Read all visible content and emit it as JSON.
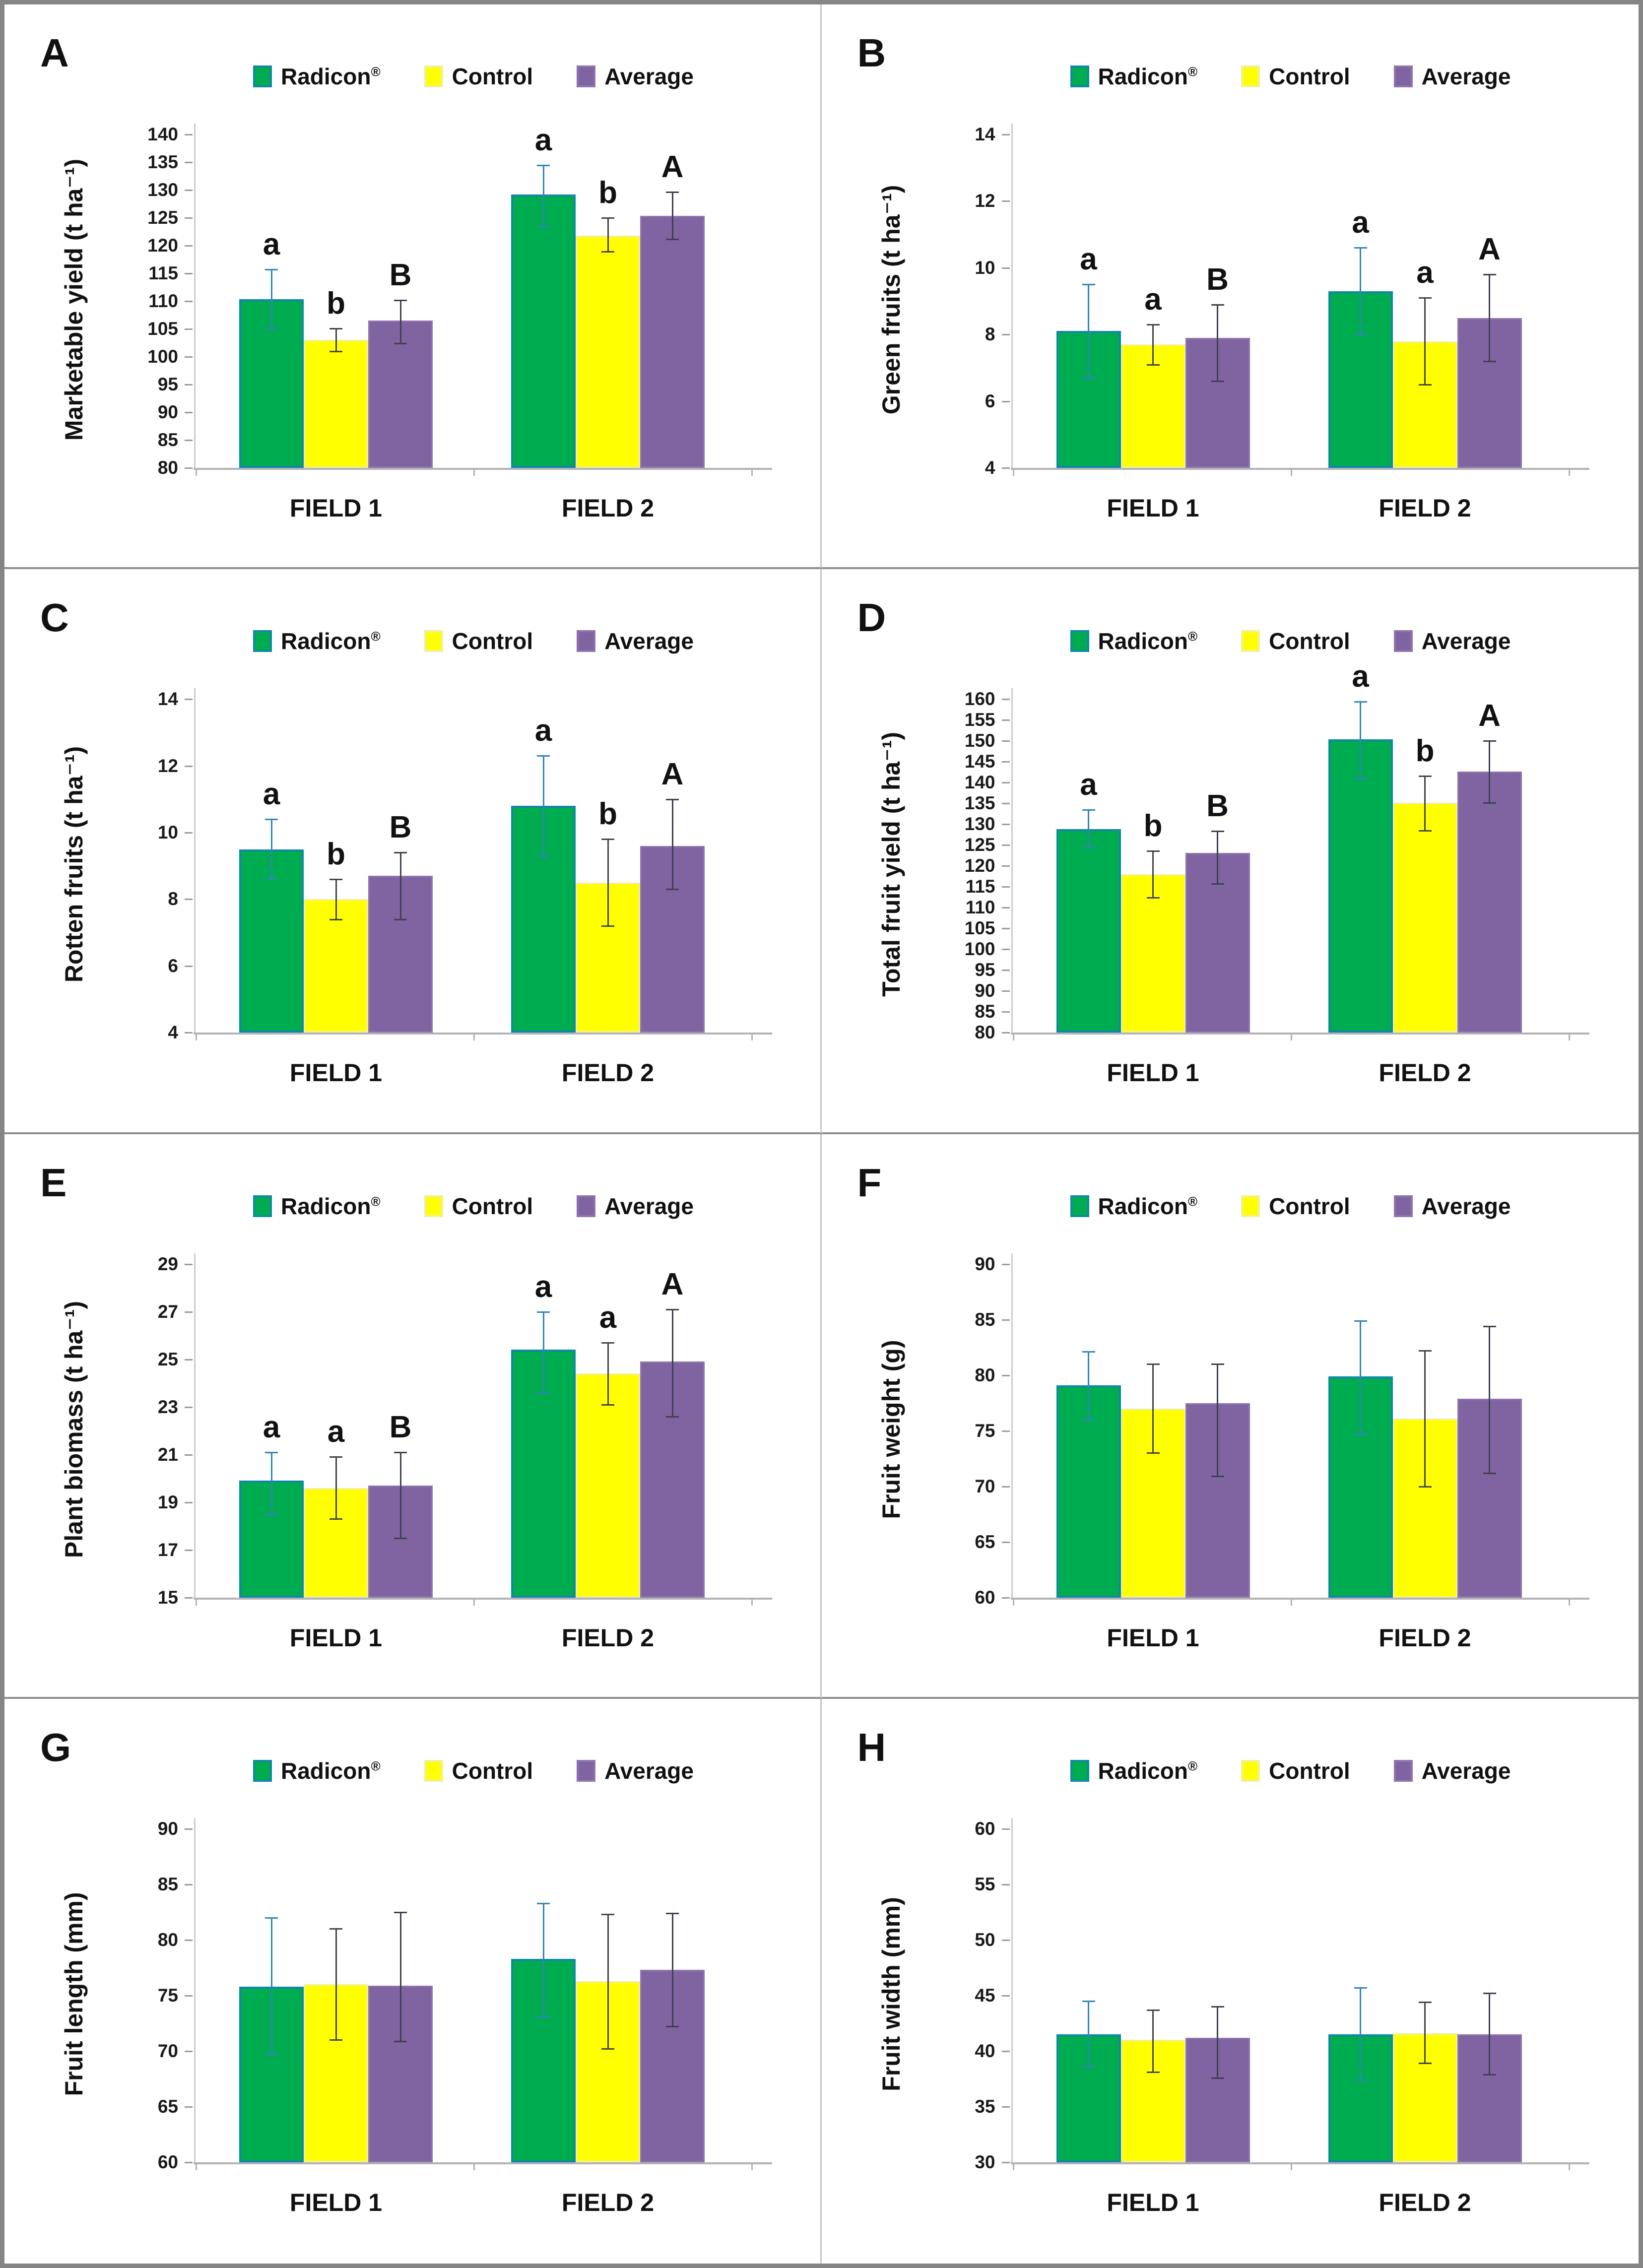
{
  "figure": {
    "panels": [
      "A",
      "B",
      "C",
      "D",
      "E",
      "F",
      "G",
      "H"
    ],
    "x_categories": [
      "FIELD 1",
      "FIELD 2"
    ]
  },
  "legend": {
    "items": [
      {
        "label": "Radicon",
        "reg": "®",
        "color": "#00AC50",
        "border": "#0f87a6"
      },
      {
        "label": "Control",
        "reg": "",
        "color": "#FFFF00",
        "border": "#f0f09a"
      },
      {
        "label": "Average",
        "reg": "",
        "color": "#8064A2",
        "border": "#8e74ae"
      }
    ]
  },
  "colors": {
    "radicon_fill": "#00AC50",
    "radicon_border": "#0f87a6",
    "control_fill": "#FFFF00",
    "average_fill": "#8064A2",
    "radicon_errbar": "#2e86b5",
    "errbar_dark": "#454545",
    "axis_gray": "#b3b3b3"
  },
  "chart_data": [
    {
      "type": "bar",
      "panel": "A",
      "ylabel": "Marketable yield (t ha⁻¹)",
      "ylim": [
        80,
        140
      ],
      "ytick_step": 5,
      "categories": [
        "FIELD 1",
        "FIELD 2"
      ],
      "series": [
        "Radicon®",
        "Control",
        "Average"
      ],
      "legend_position": "top",
      "groups": [
        {
          "category": "FIELD 1",
          "bars": [
            {
              "series": "Radicon®",
              "value": 110.4,
              "err_lo": 105.0,
              "err_hi": 115.7,
              "letter": "a"
            },
            {
              "series": "Control",
              "value": 103.0,
              "err_lo": 101.0,
              "err_hi": 105.1,
              "letter": "b"
            },
            {
              "series": "Average",
              "value": 106.5,
              "err_lo": 102.4,
              "err_hi": 110.2,
              "letter": "B"
            }
          ]
        },
        {
          "category": "FIELD 2",
          "bars": [
            {
              "series": "Radicon®",
              "value": 129.2,
              "err_lo": 123.5,
              "err_hi": 134.5,
              "letter": "a"
            },
            {
              "series": "Control",
              "value": 121.8,
              "err_lo": 118.9,
              "err_hi": 125.0,
              "letter": "b"
            },
            {
              "series": "Average",
              "value": 125.4,
              "err_lo": 121.2,
              "err_hi": 129.6,
              "letter": "A"
            }
          ]
        }
      ]
    },
    {
      "type": "bar",
      "panel": "B",
      "ylabel": "Green fruits (t ha⁻¹)",
      "ylim": [
        4,
        14
      ],
      "ytick_step": 2,
      "categories": [
        "FIELD 1",
        "FIELD 2"
      ],
      "series": [
        "Radicon®",
        "Control",
        "Average"
      ],
      "legend_position": "top",
      "groups": [
        {
          "category": "FIELD 1",
          "bars": [
            {
              "series": "Radicon®",
              "value": 8.1,
              "err_lo": 6.7,
              "err_hi": 9.5,
              "letter": "a"
            },
            {
              "series": "Control",
              "value": 7.7,
              "err_lo": 7.1,
              "err_hi": 8.3,
              "letter": "a"
            },
            {
              "series": "Average",
              "value": 7.9,
              "err_lo": 6.6,
              "err_hi": 8.9,
              "letter": "B"
            }
          ]
        },
        {
          "category": "FIELD 2",
          "bars": [
            {
              "series": "Radicon®",
              "value": 9.3,
              "err_lo": 8.0,
              "err_hi": 10.6,
              "letter": "a"
            },
            {
              "series": "Control",
              "value": 7.8,
              "err_lo": 6.5,
              "err_hi": 9.1,
              "letter": "a"
            },
            {
              "series": "Average",
              "value": 8.5,
              "err_lo": 7.2,
              "err_hi": 9.8,
              "letter": "A"
            }
          ]
        }
      ]
    },
    {
      "type": "bar",
      "panel": "C",
      "ylabel": "Rotten fruits (t ha⁻¹)",
      "ylim": [
        4,
        14
      ],
      "ytick_step": 2,
      "categories": [
        "FIELD 1",
        "FIELD 2"
      ],
      "series": [
        "Radicon®",
        "Control",
        "Average"
      ],
      "legend_position": "top",
      "groups": [
        {
          "category": "FIELD 1",
          "bars": [
            {
              "series": "Radicon®",
              "value": 9.5,
              "err_lo": 8.6,
              "err_hi": 10.4,
              "letter": "a"
            },
            {
              "series": "Control",
              "value": 8.0,
              "err_lo": 7.4,
              "err_hi": 8.6,
              "letter": "b"
            },
            {
              "series": "Average",
              "value": 8.7,
              "err_lo": 7.4,
              "err_hi": 9.4,
              "letter": "B"
            }
          ]
        },
        {
          "category": "FIELD 2",
          "bars": [
            {
              "series": "Radicon®",
              "value": 10.8,
              "err_lo": 9.3,
              "err_hi": 12.3,
              "letter": "a"
            },
            {
              "series": "Control",
              "value": 8.5,
              "err_lo": 7.2,
              "err_hi": 9.8,
              "letter": "b"
            },
            {
              "series": "Average",
              "value": 9.6,
              "err_lo": 8.3,
              "err_hi": 11.0,
              "letter": "A"
            }
          ]
        }
      ]
    },
    {
      "type": "bar",
      "panel": "D",
      "ylabel": "Total fruit yield (t ha⁻¹)",
      "ylim": [
        80,
        160
      ],
      "ytick_step": 5,
      "categories": [
        "FIELD 1",
        "FIELD 2"
      ],
      "series": [
        "Radicon®",
        "Control",
        "Average"
      ],
      "legend_position": "top",
      "groups": [
        {
          "category": "FIELD 1",
          "bars": [
            {
              "series": "Radicon®",
              "value": 128.8,
              "err_lo": 124.4,
              "err_hi": 133.5,
              "letter": "a"
            },
            {
              "series": "Control",
              "value": 118.0,
              "err_lo": 112.4,
              "err_hi": 123.6,
              "letter": "b"
            },
            {
              "series": "Average",
              "value": 123.1,
              "err_lo": 115.8,
              "err_hi": 128.4,
              "letter": "B"
            }
          ]
        },
        {
          "category": "FIELD 2",
          "bars": [
            {
              "series": "Radicon®",
              "value": 150.4,
              "err_lo": 141.0,
              "err_hi": 159.4,
              "letter": "a"
            },
            {
              "series": "Control",
              "value": 135.2,
              "err_lo": 128.5,
              "err_hi": 141.6,
              "letter": "b"
            },
            {
              "series": "Average",
              "value": 142.6,
              "err_lo": 135.1,
              "err_hi": 150.0,
              "letter": "A"
            }
          ]
        }
      ]
    },
    {
      "type": "bar",
      "panel": "E",
      "ylabel": "Plant biomass (t ha⁻¹)",
      "ylim": [
        15,
        29
      ],
      "ytick_step": 2,
      "categories": [
        "FIELD 1",
        "FIELD 2"
      ],
      "series": [
        "Radicon®",
        "Control",
        "Average"
      ],
      "legend_position": "top",
      "groups": [
        {
          "category": "FIELD 1",
          "bars": [
            {
              "series": "Radicon®",
              "value": 19.9,
              "err_lo": 18.5,
              "err_hi": 21.1,
              "letter": "a"
            },
            {
              "series": "Control",
              "value": 19.6,
              "err_lo": 18.3,
              "err_hi": 20.9,
              "letter": "a"
            },
            {
              "series": "Average",
              "value": 19.7,
              "err_lo": 17.5,
              "err_hi": 21.1,
              "letter": "B"
            }
          ]
        },
        {
          "category": "FIELD 2",
          "bars": [
            {
              "series": "Radicon®",
              "value": 25.4,
              "err_lo": 23.6,
              "err_hi": 27.0,
              "letter": "a"
            },
            {
              "series": "Control",
              "value": 24.4,
              "err_lo": 23.1,
              "err_hi": 25.7,
              "letter": "a"
            },
            {
              "series": "Average",
              "value": 24.9,
              "err_lo": 22.6,
              "err_hi": 27.1,
              "letter": "A"
            }
          ]
        }
      ]
    },
    {
      "type": "bar",
      "panel": "F",
      "ylabel": "Fruit weight (g)",
      "ylim": [
        60,
        90
      ],
      "ytick_step": 5,
      "categories": [
        "FIELD 1",
        "FIELD 2"
      ],
      "series": [
        "Radicon®",
        "Control",
        "Average"
      ],
      "legend_position": "top",
      "groups": [
        {
          "category": "FIELD 1",
          "bars": [
            {
              "series": "Radicon®",
              "value": 79.1,
              "err_lo": 76.0,
              "err_hi": 82.1,
              "letter": ""
            },
            {
              "series": "Control",
              "value": 77.0,
              "err_lo": 73.0,
              "err_hi": 81.0,
              "letter": ""
            },
            {
              "series": "Average",
              "value": 77.5,
              "err_lo": 70.9,
              "err_hi": 81.0,
              "letter": ""
            }
          ]
        },
        {
          "category": "FIELD 2",
          "bars": [
            {
              "series": "Radicon®",
              "value": 79.9,
              "err_lo": 74.7,
              "err_hi": 84.9,
              "letter": ""
            },
            {
              "series": "Control",
              "value": 76.1,
              "err_lo": 70.0,
              "err_hi": 82.2,
              "letter": ""
            },
            {
              "series": "Average",
              "value": 77.9,
              "err_lo": 71.2,
              "err_hi": 84.4,
              "letter": ""
            }
          ]
        }
      ]
    },
    {
      "type": "bar",
      "panel": "G",
      "ylabel": "Fruit length (mm)",
      "ylim": [
        60,
        90
      ],
      "ytick_step": 5,
      "categories": [
        "FIELD 1",
        "FIELD 2"
      ],
      "series": [
        "Radicon®",
        "Control",
        "Average"
      ],
      "legend_position": "top",
      "groups": [
        {
          "category": "FIELD 1",
          "bars": [
            {
              "series": "Radicon®",
              "value": 75.8,
              "err_lo": 69.7,
              "err_hi": 82.0,
              "letter": ""
            },
            {
              "series": "Control",
              "value": 76.0,
              "err_lo": 71.0,
              "err_hi": 81.0,
              "letter": ""
            },
            {
              "series": "Average",
              "value": 75.9,
              "err_lo": 70.9,
              "err_hi": 82.5,
              "letter": ""
            }
          ]
        },
        {
          "category": "FIELD 2",
          "bars": [
            {
              "series": "Radicon®",
              "value": 78.3,
              "err_lo": 73.1,
              "err_hi": 83.3,
              "letter": ""
            },
            {
              "series": "Control",
              "value": 76.3,
              "err_lo": 70.2,
              "err_hi": 82.3,
              "letter": ""
            },
            {
              "series": "Average",
              "value": 77.3,
              "err_lo": 72.2,
              "err_hi": 82.4,
              "letter": ""
            }
          ]
        }
      ]
    },
    {
      "type": "bar",
      "panel": "H",
      "ylabel": "Fruit width (mm)",
      "ylim": [
        30,
        60
      ],
      "ytick_step": 5,
      "categories": [
        "FIELD 1",
        "FIELD 2"
      ],
      "series": [
        "Radicon®",
        "Control",
        "Average"
      ],
      "legend_position": "top",
      "groups": [
        {
          "category": "FIELD 1",
          "bars": [
            {
              "series": "Radicon®",
              "value": 41.5,
              "err_lo": 38.6,
              "err_hi": 44.5,
              "letter": ""
            },
            {
              "series": "Control",
              "value": 41.0,
              "err_lo": 38.1,
              "err_hi": 43.7,
              "letter": ""
            },
            {
              "series": "Average",
              "value": 41.2,
              "err_lo": 37.6,
              "err_hi": 44.0,
              "letter": ""
            }
          ]
        },
        {
          "category": "FIELD 2",
          "bars": [
            {
              "series": "Radicon®",
              "value": 41.5,
              "err_lo": 37.4,
              "err_hi": 45.7,
              "letter": ""
            },
            {
              "series": "Control",
              "value": 41.6,
              "err_lo": 38.9,
              "err_hi": 44.4,
              "letter": ""
            },
            {
              "series": "Average",
              "value": 41.5,
              "err_lo": 37.9,
              "err_hi": 45.2,
              "letter": ""
            }
          ]
        }
      ]
    }
  ]
}
